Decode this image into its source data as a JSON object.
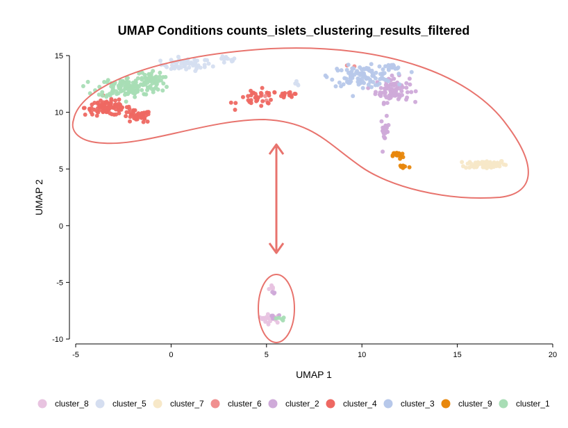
{
  "chart_data": {
    "type": "scatter",
    "title": "UMAP Conditions counts_islets_clustering_results_filtered",
    "xlabel": "UMAP 1",
    "ylabel": "UMAP 2",
    "xlim": [
      -5,
      20
    ],
    "ylim": [
      -10,
      15
    ],
    "xticks": [
      "-5",
      "0",
      "5",
      "10",
      "15",
      "20"
    ],
    "yticks": [
      "-10",
      "-5",
      "0",
      "5",
      "10",
      "15"
    ],
    "grid": false,
    "legend_position": "bottom",
    "series": [
      {
        "name": "cluster_8",
        "color": "#e8c3e0",
        "blobs": [
          [
            5.3,
            -5.5,
            0.15,
            0.3,
            6
          ],
          [
            5.2,
            -8.2,
            0.6,
            0.35,
            22
          ]
        ]
      },
      {
        "name": "cluster_5",
        "color": "#d5def0",
        "blobs": [
          [
            0.8,
            14.2,
            1.2,
            0.5,
            55
          ],
          [
            2.9,
            14.6,
            0.5,
            0.3,
            12
          ],
          [
            6.7,
            12.5,
            0.2,
            0.2,
            4
          ]
        ]
      },
      {
        "name": "cluster_7",
        "color": "#f7e8c8",
        "blobs": [
          [
            16.5,
            5.4,
            1.0,
            0.35,
            75
          ]
        ]
      },
      {
        "name": "cluster_6",
        "color": "#f08f8f",
        "blobs": [
          [
            9.6,
            14.0,
            0.2,
            0.2,
            2
          ],
          [
            4.7,
            11.5,
            0.6,
            0.4,
            3
          ]
        ]
      },
      {
        "name": "cluster_2",
        "color": "#cfaad9",
        "blobs": [
          [
            11.6,
            12.0,
            0.8,
            1.0,
            80
          ],
          [
            11.2,
            8.4,
            0.2,
            1.0,
            20
          ],
          [
            5.4,
            -6.0,
            0.1,
            0.2,
            3
          ],
          [
            5.4,
            -7.9,
            0.3,
            0.2,
            5
          ]
        ]
      },
      {
        "name": "cluster_4",
        "color": "#ee6862",
        "blobs": [
          [
            -3.3,
            10.4,
            1.1,
            0.6,
            90
          ],
          [
            -1.8,
            9.6,
            0.7,
            0.5,
            40
          ],
          [
            4.6,
            11.2,
            1.0,
            0.7,
            35
          ],
          [
            6.2,
            11.6,
            0.5,
            0.3,
            15
          ]
        ]
      },
      {
        "name": "cluster_3",
        "color": "#b7c8ea",
        "blobs": [
          [
            10.0,
            13.2,
            1.5,
            0.8,
            110
          ],
          [
            11.5,
            13.9,
            0.5,
            0.3,
            12
          ]
        ]
      },
      {
        "name": "cluster_9",
        "color": "#e8870c",
        "blobs": [
          [
            11.9,
            6.2,
            0.25,
            0.3,
            20
          ],
          [
            12.2,
            5.2,
            0.3,
            0.2,
            10
          ]
        ]
      },
      {
        "name": "cluster_1",
        "color": "#a8ddb5",
        "blobs": [
          [
            -2.2,
            12.2,
            1.5,
            0.8,
            130
          ],
          [
            -1.2,
            13.0,
            0.7,
            0.5,
            35
          ],
          [
            5.7,
            -8.2,
            0.2,
            0.15,
            5
          ]
        ]
      }
    ]
  },
  "annotations": {
    "color": "#e8736d"
  }
}
